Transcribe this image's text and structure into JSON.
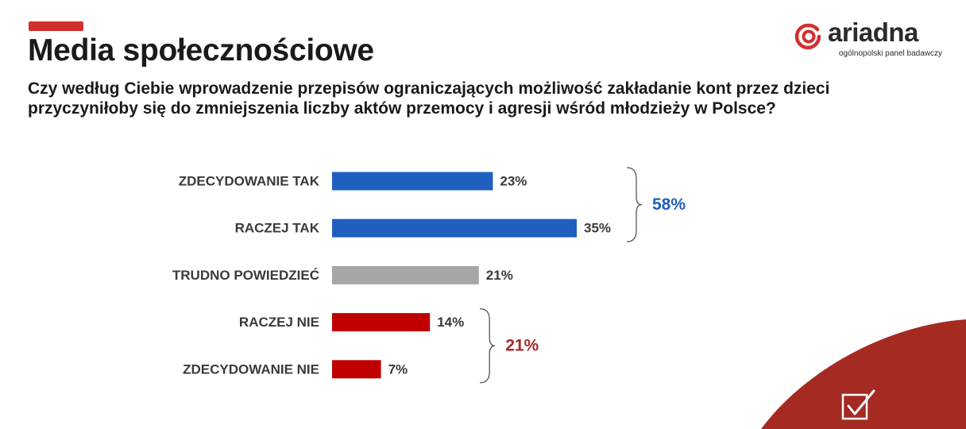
{
  "header": {
    "title": "Media społecznościowe",
    "question": "Czy według Ciebie wprowadzenie przepisów ograniczających możliwość zakładanie kont przez dzieci przyczyniłoby się do zmniejszenia liczby aktów przemocy i agresji wśród młodzieży w Polsce?"
  },
  "logo": {
    "name": "ariadna",
    "tagline": "ogólnopolski panel badawczy",
    "icon": "ariadna-spiral-logo-icon"
  },
  "colors": {
    "accent": "#d32f2f",
    "positive": "#1f5fbf",
    "neutral": "#a6a6a6",
    "negative": "#c00000",
    "positive_total": "#1f5fbf",
    "negative_total": "#a52a2a",
    "corner": "#a52a22"
  },
  "corner_icon": "checkbox-check-icon",
  "chart_data": {
    "type": "bar",
    "orientation": "horizontal",
    "categories": [
      "ZDECYDOWANIE TAK",
      "RACZEJ TAK",
      "TRUDNO POWIEDZIEĆ",
      "RACZEJ NIE",
      "ZDECYDOWANIE NIE"
    ],
    "values": [
      23,
      35,
      21,
      14,
      7
    ],
    "value_labels": [
      "23%",
      "35%",
      "21%",
      "14%",
      "7%"
    ],
    "groups": [
      "positive",
      "positive",
      "neutral",
      "negative",
      "negative"
    ],
    "xlim": [
      0,
      100
    ],
    "grid": false,
    "totals": [
      {
        "label": "58%",
        "from": 0,
        "to": 1,
        "group": "positive"
      },
      {
        "label": "21%",
        "from": 3,
        "to": 4,
        "group": "negative"
      }
    ]
  }
}
